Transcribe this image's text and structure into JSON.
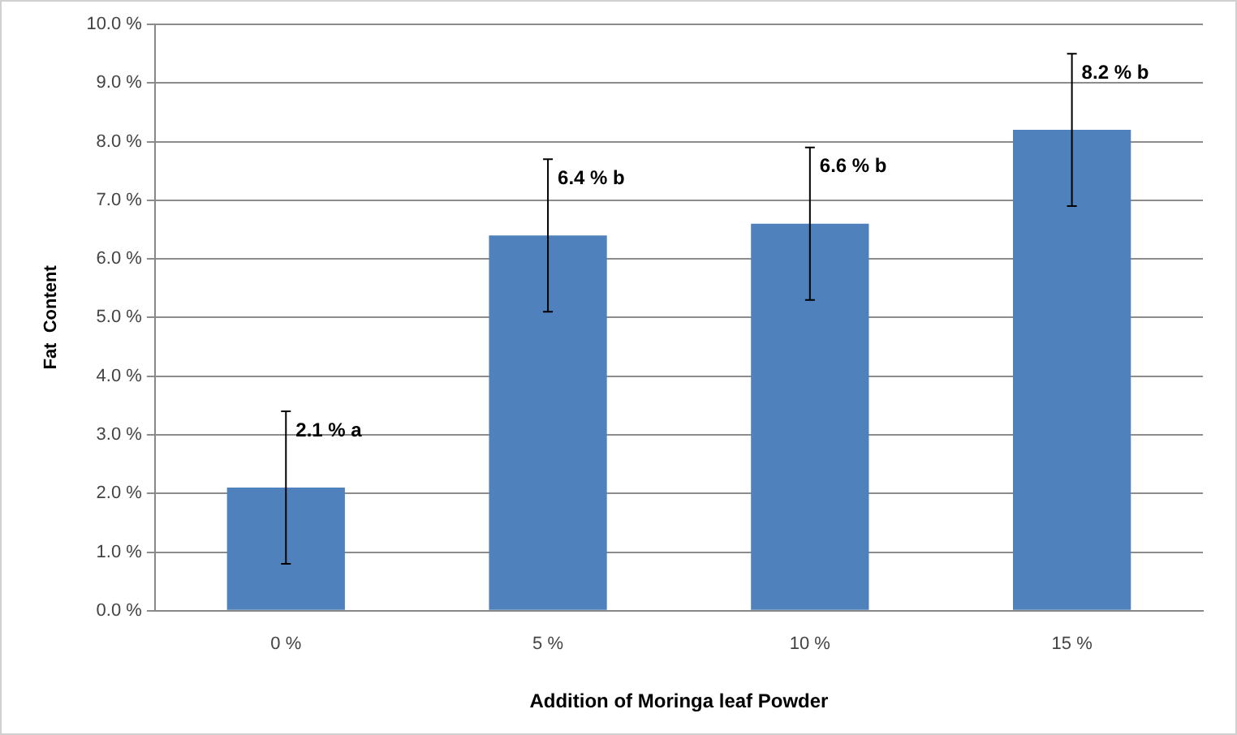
{
  "chart_data": {
    "type": "bar",
    "xlabel": "Addition of Moringa leaf Powder",
    "ylabel": "Fat  Content",
    "categories": [
      "0 %",
      "5 %",
      "10 %",
      "15 %"
    ],
    "values": [
      2.1,
      6.4,
      6.6,
      8.2
    ],
    "errors": [
      1.3,
      1.3,
      1.3,
      1.3
    ],
    "value_labels": [
      "2.1 % a",
      "6.4 % b",
      "6.6 % b",
      "8.2 % b"
    ],
    "color": "#4f81bd",
    "ylim": [
      0,
      10
    ],
    "yticks": [
      {
        "value": 0,
        "label": "0.0 %"
      },
      {
        "value": 1,
        "label": "1.0 %"
      },
      {
        "value": 2,
        "label": "2.0 %"
      },
      {
        "value": 3,
        "label": "3.0 %"
      },
      {
        "value": 4,
        "label": "4.0 %"
      },
      {
        "value": 5,
        "label": "5.0 %"
      },
      {
        "value": 6,
        "label": "6.0 %"
      },
      {
        "value": 7,
        "label": "7.0 %"
      },
      {
        "value": 8,
        "label": "8.0 %"
      },
      {
        "value": 9,
        "label": "9.0 %"
      },
      {
        "value": 10,
        "label": "10.0 %"
      }
    ],
    "grid": "y",
    "legend": false
  }
}
